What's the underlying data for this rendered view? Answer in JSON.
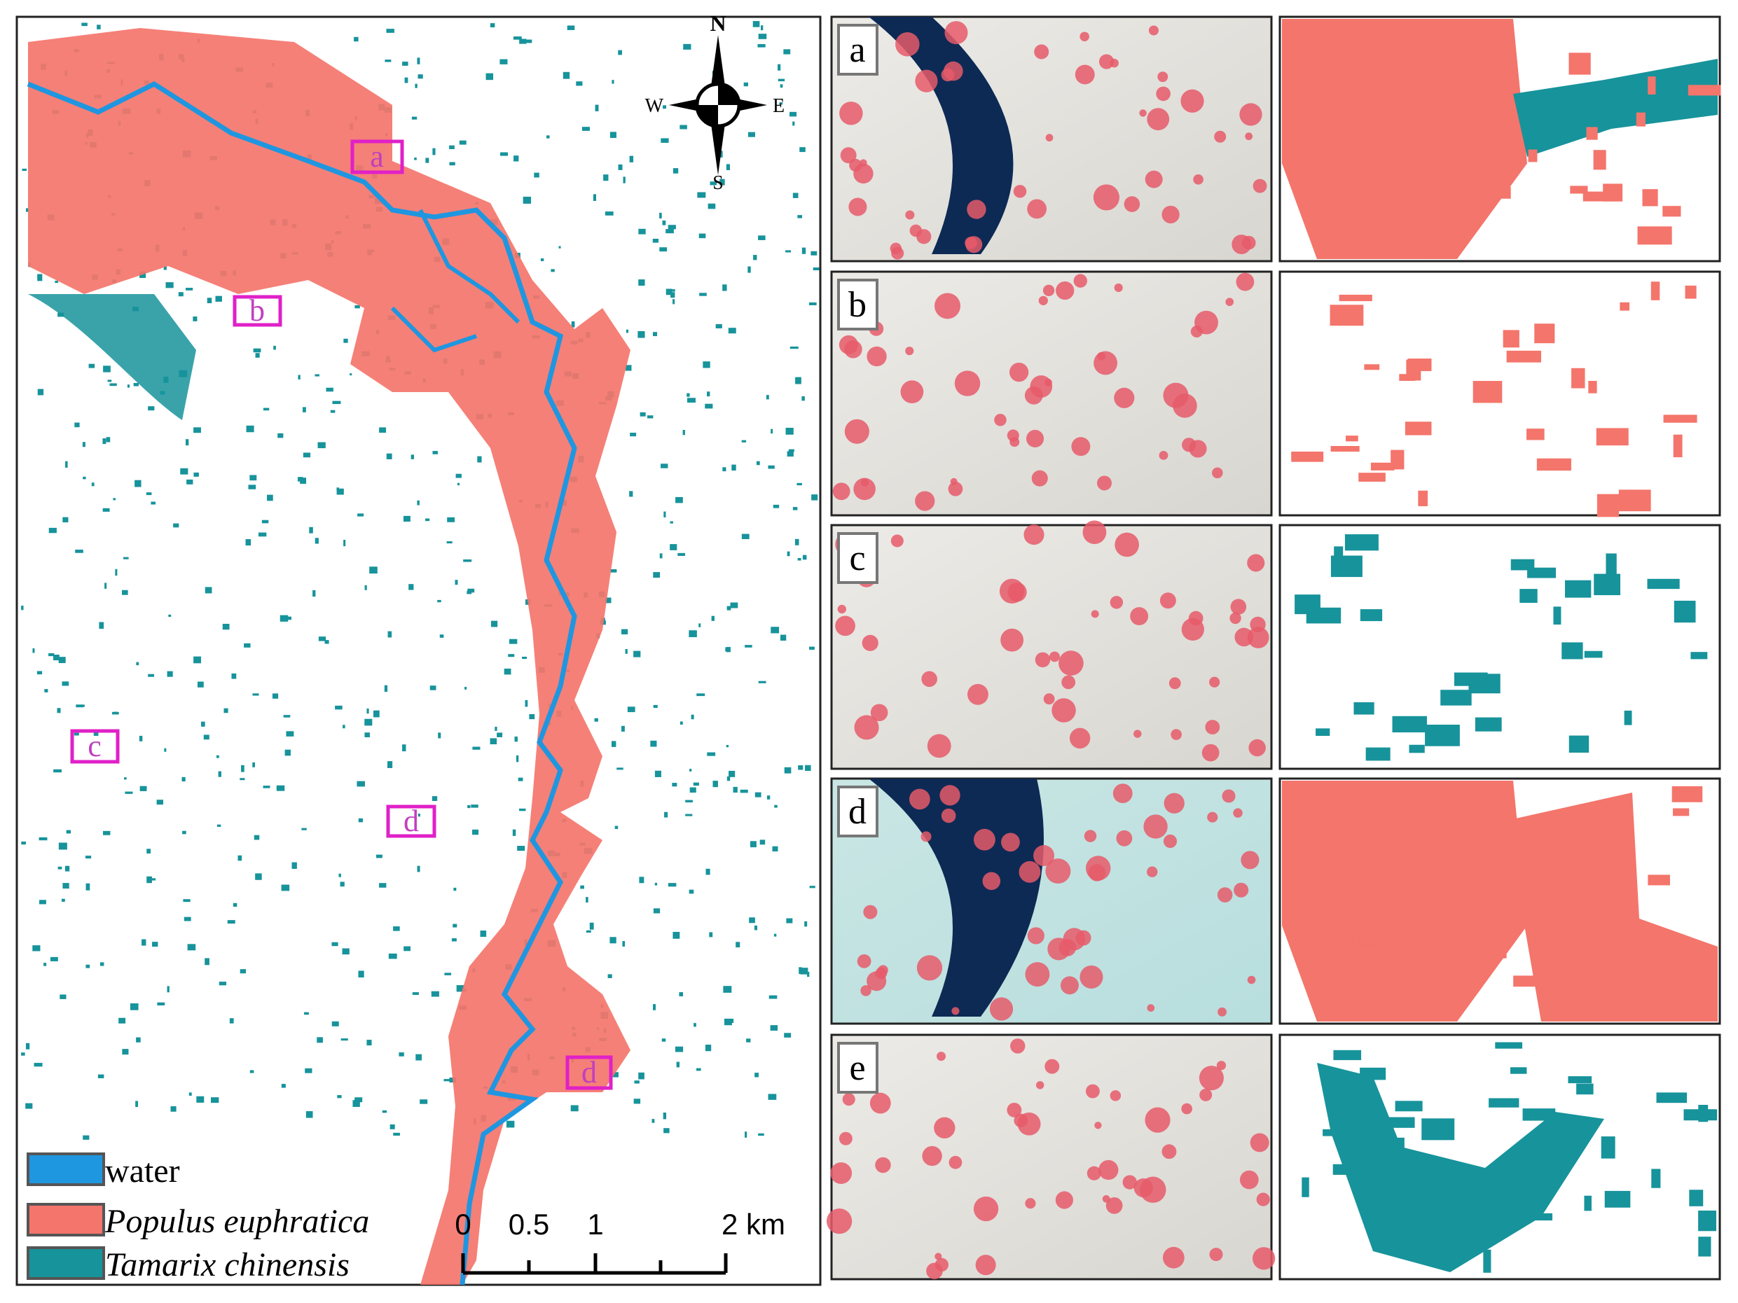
{
  "map": {
    "compass": {
      "north": "N",
      "south": "S",
      "west": "W",
      "east": "E"
    },
    "boxes": [
      "a",
      "b",
      "c",
      "d",
      "d"
    ],
    "legend": [
      "water",
      "Populus euphratica",
      "Tamarix chinensis"
    ],
    "scale_bar": [
      "0",
      "0.5",
      "1",
      "2 km"
    ]
  },
  "panels": [
    "a",
    "b",
    "c",
    "d",
    "e"
  ]
}
